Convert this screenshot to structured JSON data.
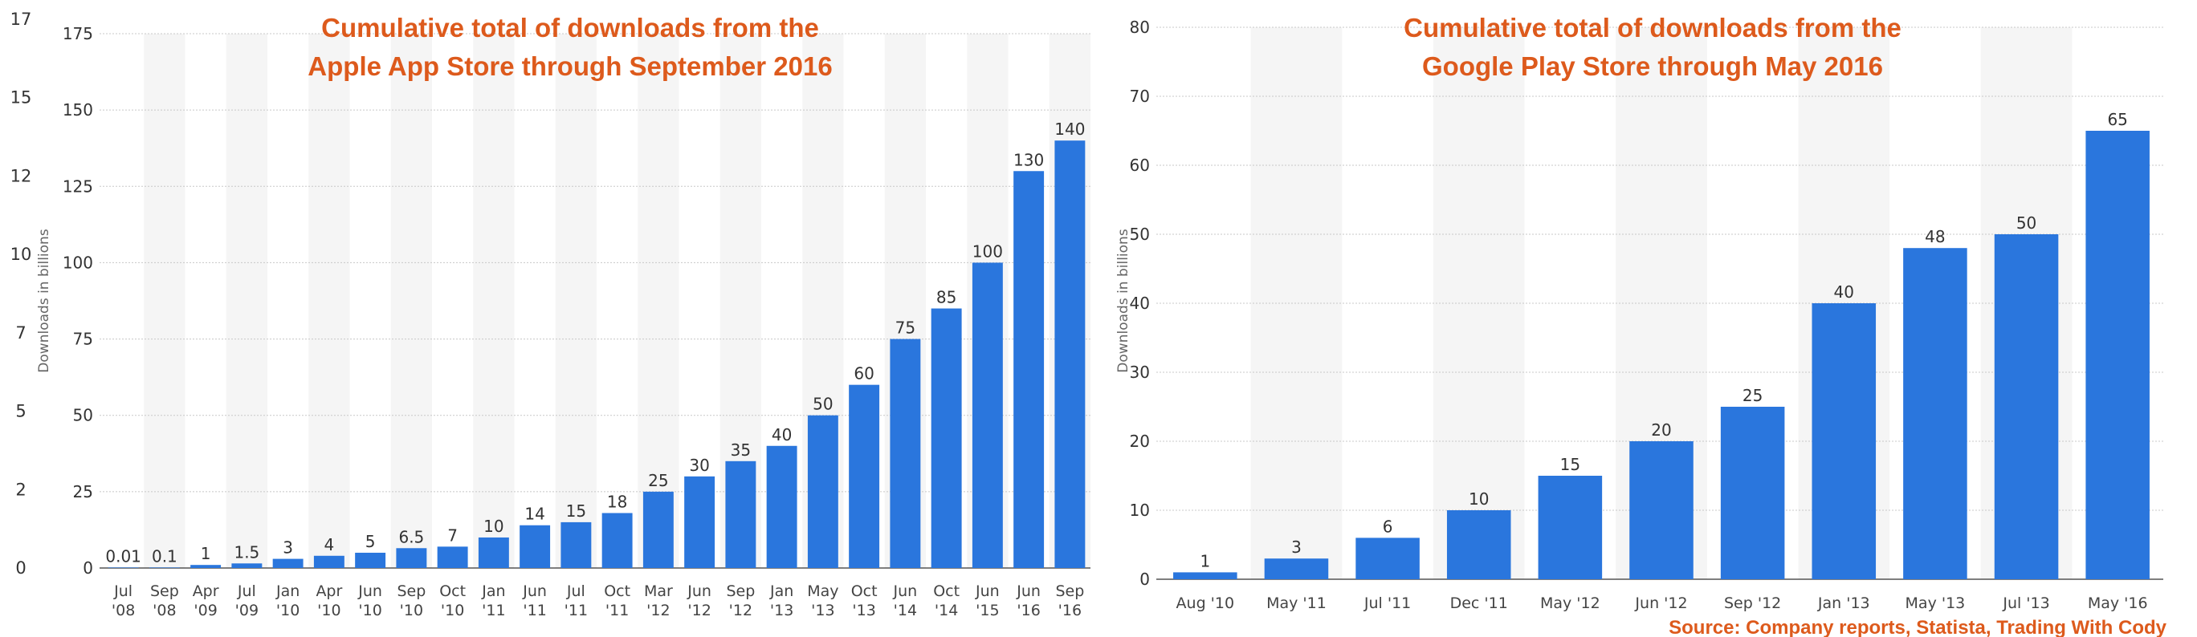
{
  "chart_data": [
    {
      "type": "bar",
      "title_lines": [
        "Cumulative total of downloads from the",
        "Apple App Store through September 2016"
      ],
      "ylabel": "Downloads in billions",
      "ylim": [
        0,
        175
      ],
      "yticks": [
        0,
        25,
        50,
        75,
        100,
        125,
        150,
        175
      ],
      "outer_ticks": [
        "17",
        "15",
        "12",
        "10",
        "7",
        "5",
        "2",
        "0"
      ],
      "grid": true,
      "bar_color": "#2a76dd",
      "categories": [
        [
          "Jul",
          "'08"
        ],
        [
          "Sep",
          "'08"
        ],
        [
          "Apr",
          "'09"
        ],
        [
          "Jul",
          "'09"
        ],
        [
          "Jan",
          "'10"
        ],
        [
          "Apr",
          "'10"
        ],
        [
          "Jun",
          "'10"
        ],
        [
          "Sep",
          "'10"
        ],
        [
          "Oct",
          "'10"
        ],
        [
          "Jan",
          "'11"
        ],
        [
          "Jun",
          "'11"
        ],
        [
          "Jul",
          "'11"
        ],
        [
          "Oct",
          "'11"
        ],
        [
          "Mar",
          "'12"
        ],
        [
          "Jun",
          "'12"
        ],
        [
          "Sep",
          "'12"
        ],
        [
          "Jan",
          "'13"
        ],
        [
          "May",
          "'13"
        ],
        [
          "Oct",
          "'13"
        ],
        [
          "Jun",
          "'14"
        ],
        [
          "Oct",
          "'14"
        ],
        [
          "Jun",
          "'15"
        ],
        [
          "Jun",
          "'16"
        ],
        [
          "Sep",
          "'16"
        ]
      ],
      "values": [
        0.01,
        0.1,
        1,
        1.5,
        3,
        4,
        5,
        6.5,
        7,
        10,
        14,
        15,
        18,
        25,
        30,
        35,
        40,
        50,
        60,
        75,
        85,
        100,
        130,
        140
      ],
      "value_labels": [
        "0.01",
        "0.1",
        "1",
        "1.5",
        "3",
        "4",
        "5",
        "6.5",
        "7",
        "10",
        "14",
        "15",
        "18",
        "25",
        "30",
        "35",
        "40",
        "50",
        "60",
        "75",
        "85",
        "100",
        "130",
        "140"
      ]
    },
    {
      "type": "bar",
      "title_lines": [
        "Cumulative total of downloads from the",
        "Google Play Store through May 2016"
      ],
      "ylabel": "Downloads in billions",
      "ylim": [
        0,
        80
      ],
      "yticks": [
        0,
        10,
        20,
        30,
        40,
        50,
        60,
        70,
        80
      ],
      "grid": true,
      "bar_color": "#2a76dd",
      "categories": [
        [
          "Aug '10"
        ],
        [
          "May '11"
        ],
        [
          "Jul '11"
        ],
        [
          "Dec '11"
        ],
        [
          "May '12"
        ],
        [
          "Jun '12"
        ],
        [
          "Sep '12"
        ],
        [
          "Jan '13"
        ],
        [
          "May '13"
        ],
        [
          "Jul '13"
        ],
        [
          "May '16"
        ]
      ],
      "values": [
        1,
        3,
        6,
        10,
        15,
        20,
        25,
        40,
        48,
        50,
        65
      ],
      "value_labels": [
        "1",
        "3",
        "6",
        "10",
        "15",
        "20",
        "25",
        "40",
        "48",
        "50",
        "65"
      ]
    }
  ],
  "source": "Source: Company reports, Statista, Trading With Cody",
  "colors": {
    "title": "#dd5a1c",
    "bar": "#2a76dd",
    "band": "#f5f5f5",
    "grid": "#c8c8c8"
  }
}
